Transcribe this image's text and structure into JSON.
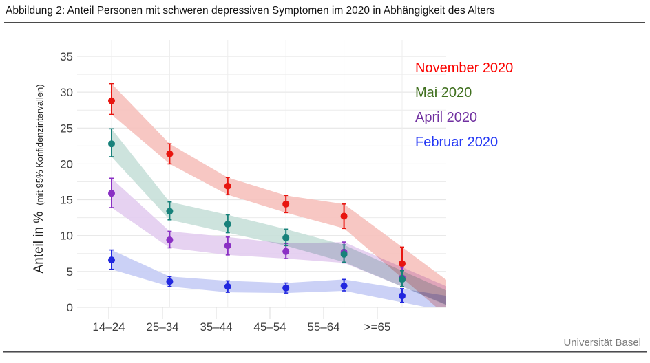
{
  "header": {
    "title": "Abbildung 2: Anteil Personen mit schweren depressiven Symptomen im 2020 in Abhängigkeit des Alters"
  },
  "footer": {
    "org": "Universität Basel"
  },
  "chart_data": {
    "type": "scatter",
    "title": "Abbildung 2: Anteil Personen mit schweren depressiven Symptomen im 2020 in Abhängigkeit des Alters",
    "categories": [
      "14–24",
      "25–34",
      "35–44",
      "45–54",
      "55–64",
      ">=65"
    ],
    "xlabel": "",
    "ylabel": "Anteil in %",
    "ylabel_note": "(mit 95% Konfidenzintervallen)",
    "ylim": [
      0,
      35
    ],
    "yticks": [
      0,
      5,
      10,
      15,
      20,
      25,
      30,
      35
    ],
    "grid_minor_step": 2.5,
    "grid": true,
    "legend_position": "top-right",
    "error_bars": "95% CI",
    "series": [
      {
        "name": "November 2020",
        "color": "#e8150f",
        "band_color": "#f6c1bc",
        "legend_color": "#fb0300",
        "values": [
          28.8,
          21.4,
          16.9,
          14.4,
          12.7,
          6.1
        ],
        "ci_low": [
          26.9,
          20.0,
          15.7,
          13.2,
          11.0,
          4.1
        ],
        "ci_high": [
          31.2,
          22.8,
          18.1,
          15.6,
          14.4,
          8.4
        ]
      },
      {
        "name": "Mai 2020",
        "color": "#17817a",
        "band_color": "#c8e0d9",
        "legend_color": "#40701f",
        "values": [
          22.8,
          13.4,
          11.6,
          9.7,
          7.4,
          3.9
        ],
        "ci_low": [
          21.0,
          12.2,
          10.4,
          8.6,
          6.3,
          2.9
        ],
        "ci_high": [
          24.9,
          14.7,
          12.9,
          10.9,
          8.7,
          5.1
        ]
      },
      {
        "name": "April 2020",
        "color": "#8a2fc4",
        "band_color": "#e3cdf0",
        "legend_color": "#7030a0",
        "values": [
          15.9,
          9.4,
          8.6,
          7.8,
          7.7,
          4.1
        ],
        "ci_low": [
          13.9,
          8.3,
          7.3,
          6.8,
          6.2,
          2.9
        ],
        "ci_high": [
          18.0,
          10.6,
          9.8,
          8.9,
          9.1,
          5.6
        ]
      },
      {
        "name": "Februar 2020",
        "color": "#2127df",
        "band_color": "#c5ccf5",
        "legend_color": "#2438f5",
        "values": [
          6.6,
          3.6,
          2.9,
          2.7,
          3.0,
          1.6
        ],
        "ci_low": [
          5.3,
          2.9,
          2.1,
          2.0,
          2.3,
          0.7
        ],
        "ci_high": [
          8.0,
          4.3,
          3.7,
          3.4,
          3.9,
          2.6
        ]
      }
    ]
  }
}
